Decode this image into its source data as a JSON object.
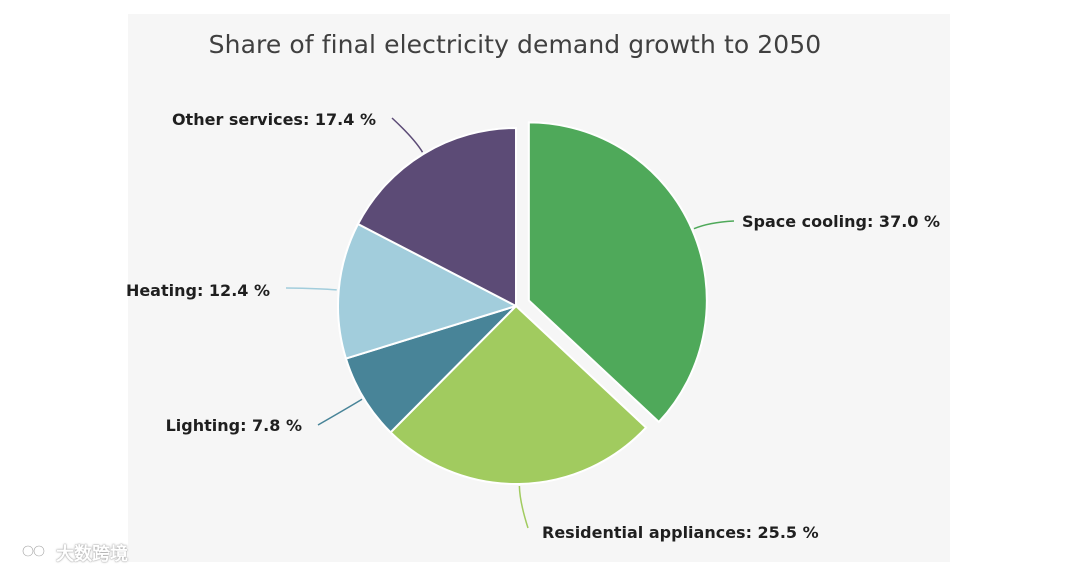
{
  "chart_data": {
    "type": "pie",
    "title": "Share of final electricity demand growth to 2050",
    "unit": "%",
    "slices": [
      {
        "label": "Space cooling",
        "value": 37.0,
        "display": "Space cooling: 37.0 %",
        "color": "#4fa95a",
        "exploded": true
      },
      {
        "label": "Residential appliances",
        "value": 25.5,
        "display": "Residential appliances: 25.5 %",
        "color": "#a1cb5f",
        "exploded": false
      },
      {
        "label": "Lighting",
        "value": 7.8,
        "display": "Lighting: 7.8 %",
        "color": "#488498",
        "exploded": false
      },
      {
        "label": "Heating",
        "value": 12.4,
        "display": "Heating: 12.4 %",
        "color": "#a2cddc",
        "exploded": false
      },
      {
        "label": "Other services",
        "value": 17.4,
        "display": "Other services: 17.4 %",
        "color": "#5c4b76",
        "exploded": false
      }
    ]
  },
  "watermark": {
    "text": "大数跨境"
  }
}
